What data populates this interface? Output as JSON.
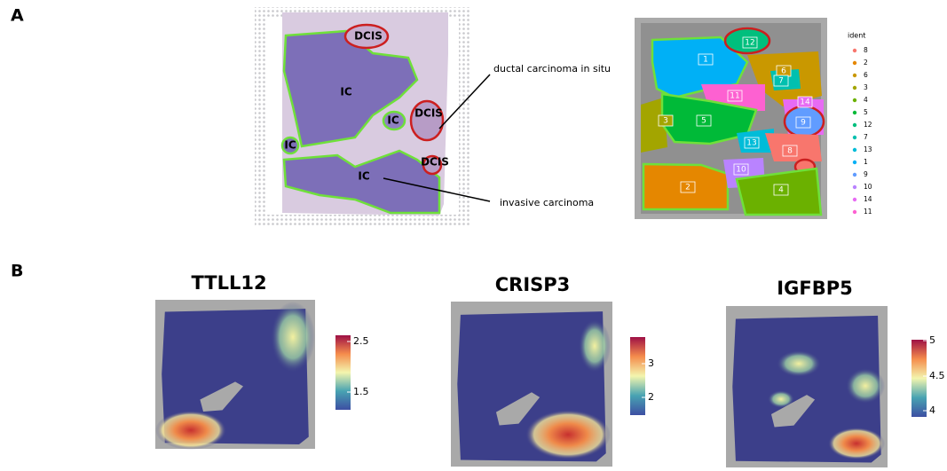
{
  "panel_a": {
    "label": "A",
    "he_labels": [
      "DCIS",
      "IC",
      "IC",
      "DCIS",
      "IC",
      "DCIS",
      "IC"
    ],
    "annotations": [
      "ductal carcinoma in situ",
      "invasive carcinoma"
    ],
    "cluster_labels": [
      "12",
      "1",
      "6",
      "7",
      "11",
      "14",
      "9",
      "3",
      "5",
      "13",
      "8",
      "10",
      "2",
      "4"
    ],
    "legend": {
      "title": "ident",
      "items": [
        {
          "name": "8",
          "color": "#F8766D"
        },
        {
          "name": "2",
          "color": "#E58700"
        },
        {
          "name": "6",
          "color": "#C99800"
        },
        {
          "name": "3",
          "color": "#A3A500"
        },
        {
          "name": "4",
          "color": "#6BB100"
        },
        {
          "name": "5",
          "color": "#00BA38"
        },
        {
          "name": "12",
          "color": "#00BF7D"
        },
        {
          "name": "7",
          "color": "#00C0AF"
        },
        {
          "name": "13",
          "color": "#00BCD8"
        },
        {
          "name": "1",
          "color": "#00B0F6"
        },
        {
          "name": "9",
          "color": "#619CFF"
        },
        {
          "name": "10",
          "color": "#B983FF"
        },
        {
          "name": "14",
          "color": "#E76BF3"
        },
        {
          "name": "11",
          "color": "#FD61D1"
        }
      ]
    }
  },
  "panel_b": {
    "label": "B",
    "maps": [
      {
        "title": "TTLL12",
        "ticks": [
          "2.5",
          "1.5"
        ]
      },
      {
        "title": "CRISP3",
        "ticks": [
          "3",
          "2"
        ]
      },
      {
        "title": "IGFBP5",
        "ticks": [
          "5",
          "4.5",
          "4"
        ]
      }
    ]
  }
}
